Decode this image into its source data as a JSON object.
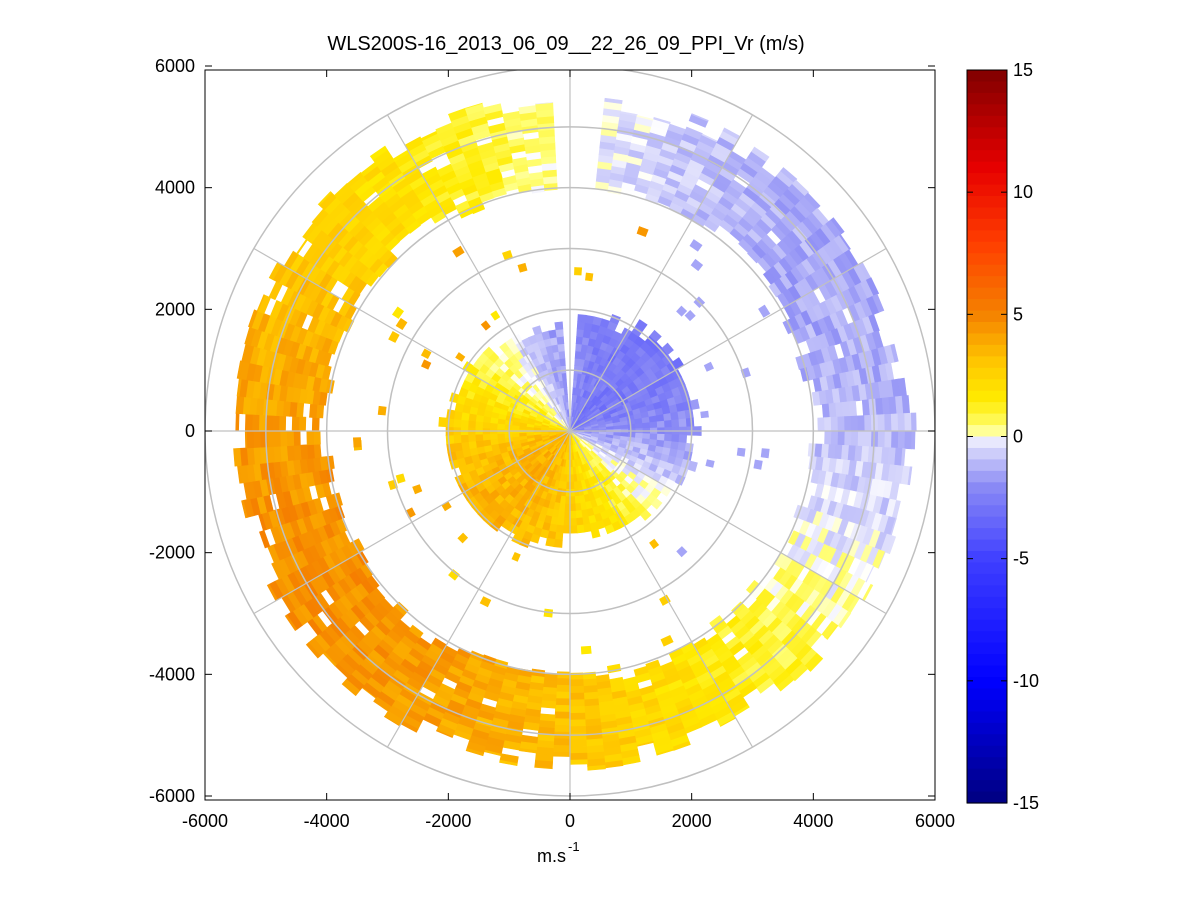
{
  "chart_data": {
    "type": "heatmap",
    "subtype": "polar-ppi",
    "title": "WLS200S-16_2013_06_09__22_26_09_PPI_Vr (m/s)",
    "xlabel_base": "m.s",
    "xlabel_sup": "-1",
    "ylabel": "",
    "xlim": [
      -6000,
      6000
    ],
    "ylim": [
      -6000,
      6000
    ],
    "x_ticks": [
      "-6000",
      "-4000",
      "-2000",
      "0",
      "2000",
      "4000",
      "6000"
    ],
    "y_ticks": [
      "6000",
      "4000",
      "2000",
      "0",
      "-2000",
      "-4000",
      "-6000"
    ],
    "x_tick_values": [
      -6000,
      -4000,
      -2000,
      0,
      2000,
      4000,
      6000
    ],
    "y_tick_values": [
      6000,
      4000,
      2000,
      0,
      -2000,
      -4000,
      -6000
    ],
    "polar_rings_m": [
      1000,
      2000,
      3000,
      4000,
      5000,
      6000
    ],
    "polar_spokes_deg": [
      0,
      30,
      60,
      90,
      120,
      150,
      180,
      210,
      240,
      270,
      300,
      330
    ],
    "colorbar": {
      "min": -15,
      "max": 15,
      "tick_values": [
        15,
        10,
        5,
        0,
        -5,
        -10,
        -15
      ],
      "tick_labels": [
        "15",
        "10",
        "5",
        "0",
        "-5",
        "-10",
        "-15"
      ]
    },
    "data_rings": [
      {
        "name": "inner",
        "r_min_m": 0,
        "r_max_m": 2000,
        "description_range": "velocities approx -4 to +4 m/s"
      },
      {
        "name": "outer",
        "r_min_m": 4000,
        "r_max_m": 5600,
        "description_range": "velocities approx -4 to +5 m/s"
      }
    ],
    "colors": {
      "negative_strong": "#6060f0",
      "negative_weak": "#dcdcfa",
      "positive_weak": "#fff57a",
      "positive_mid": "#ffd000",
      "positive_strong": "#f08a00",
      "grid": "#c0c0c0"
    }
  }
}
